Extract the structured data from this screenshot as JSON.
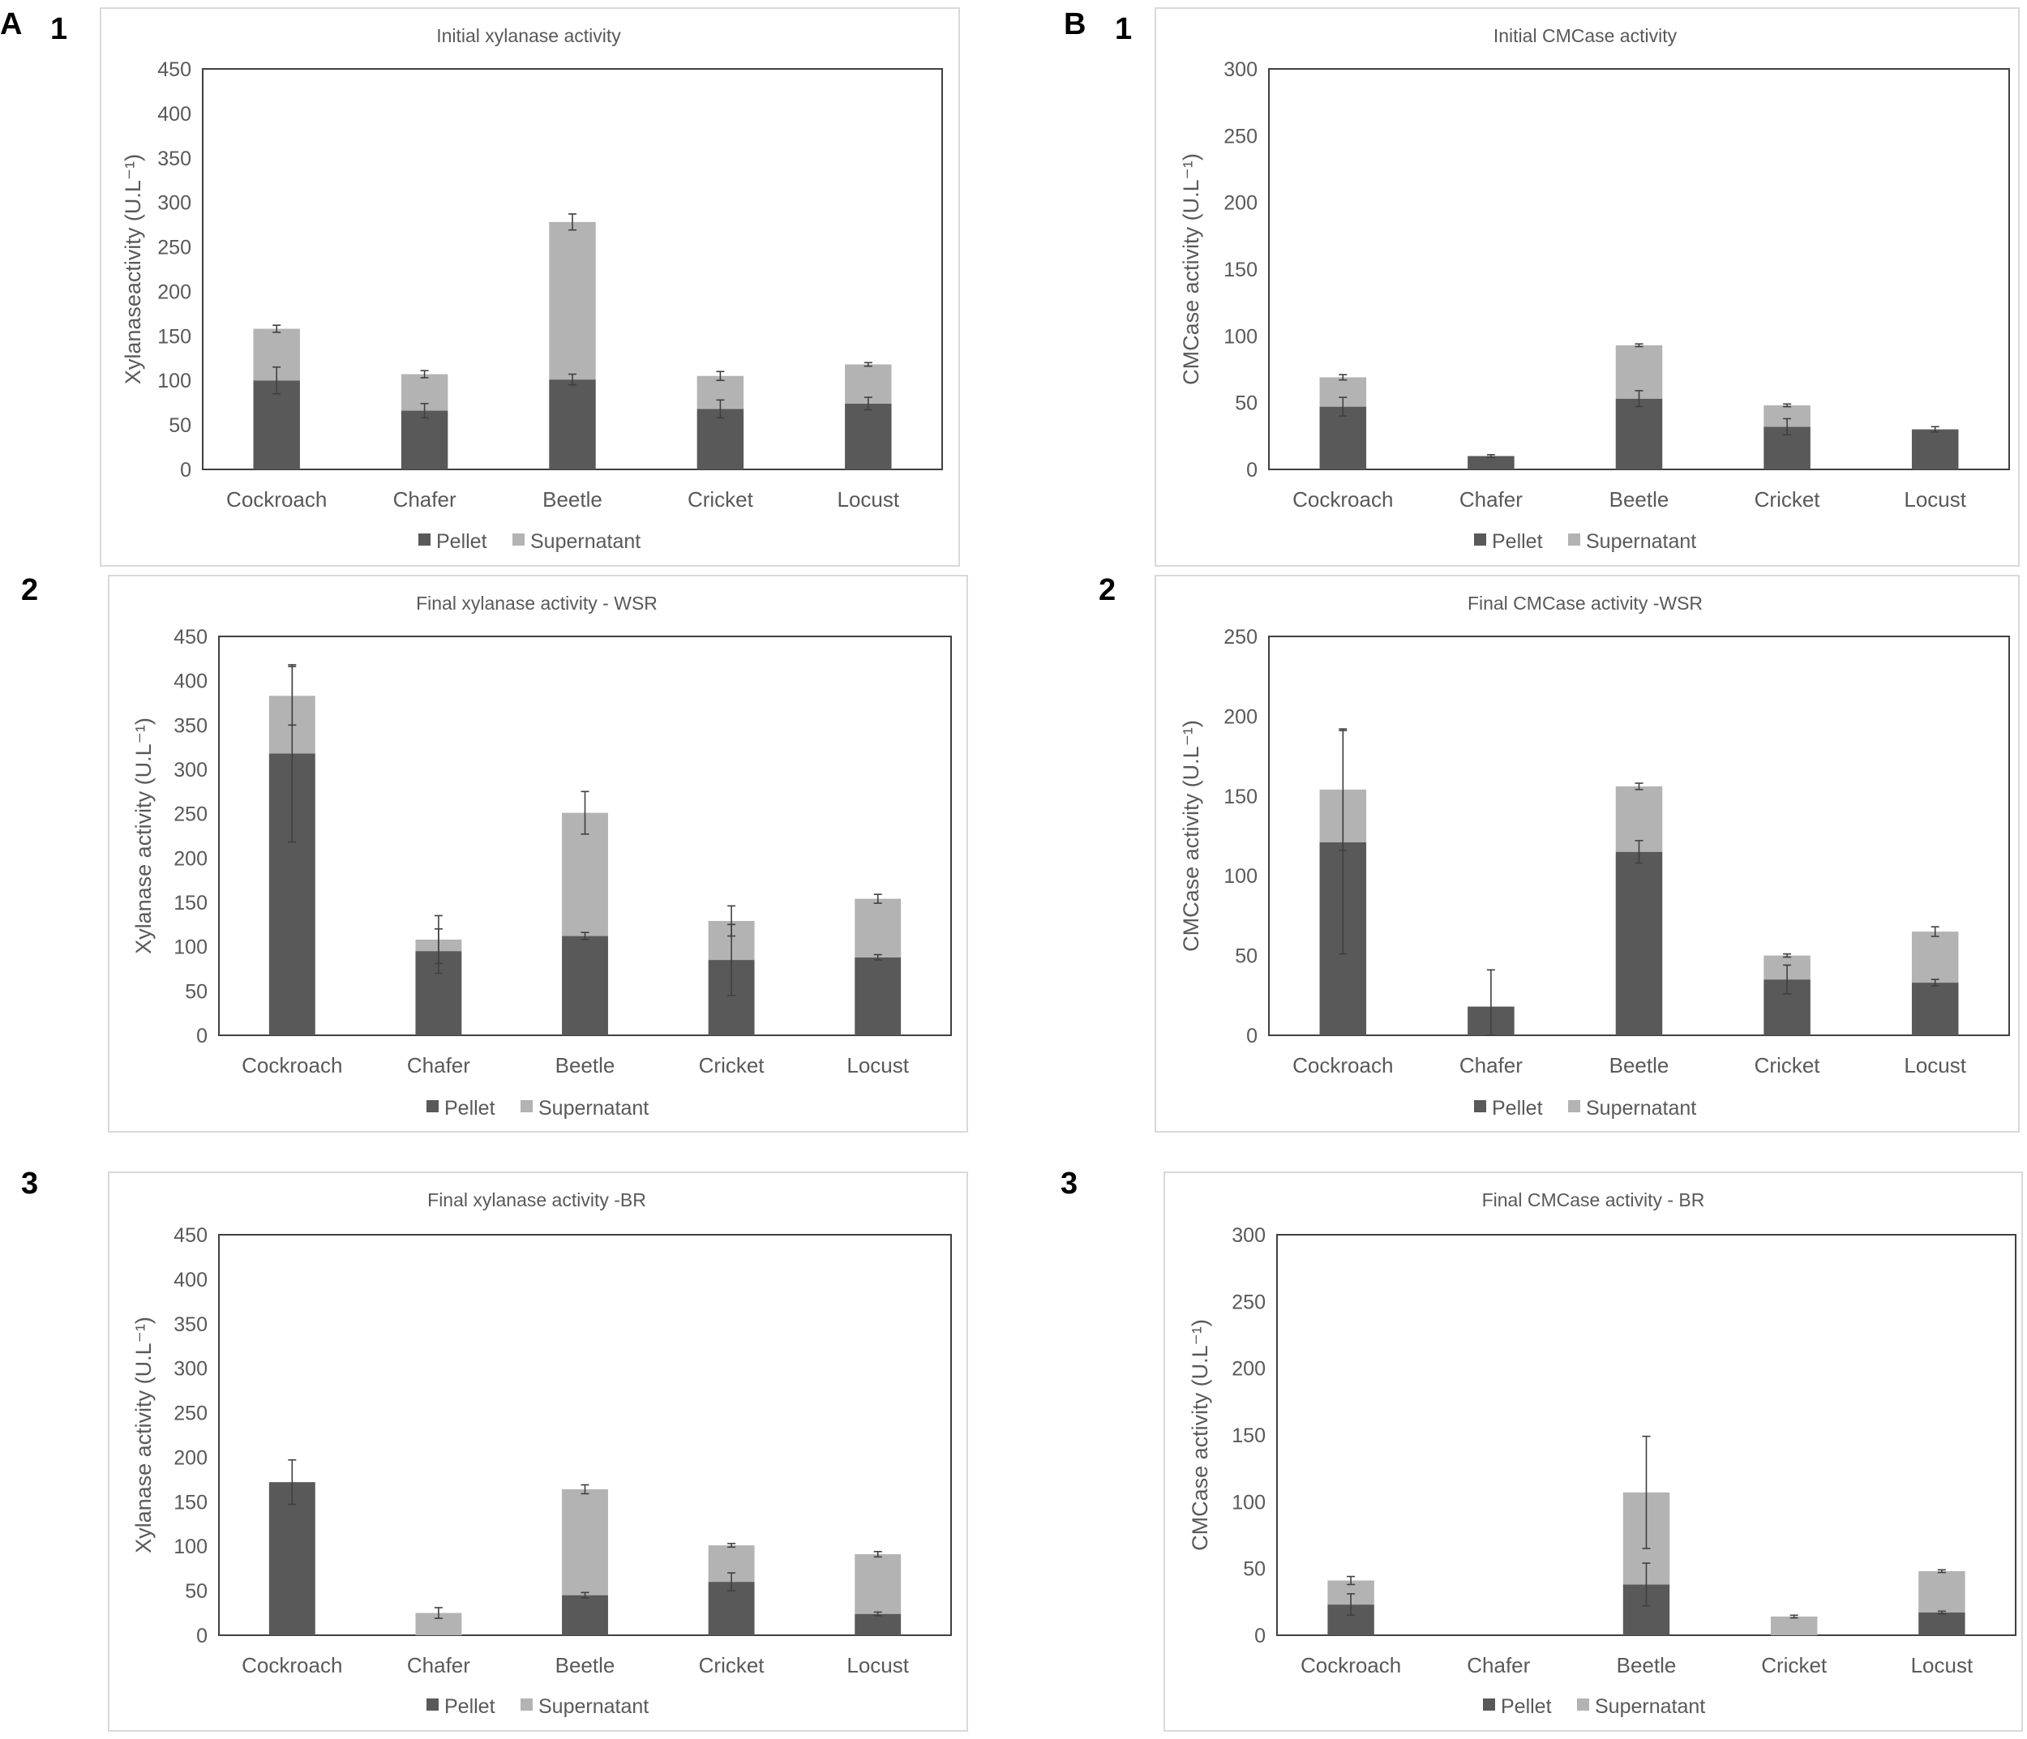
{
  "panel_labels": {
    "A": "A",
    "B": "B",
    "A1": "1",
    "A2": "2",
    "A3": "3",
    "B1": "1",
    "B2": "2",
    "B3": "3"
  },
  "colors": {
    "pellet": "#595959",
    "supernatant": "#b3b3b3",
    "axis": "#404040",
    "frame": "#d9d9d9",
    "error": "#404040"
  },
  "legend": {
    "pellet": "Pellet",
    "supernatant": "Supernatant"
  },
  "chart_data": [
    {
      "id": "A1",
      "type": "bar",
      "stacked": true,
      "title": "Initial xylanase activity",
      "ylabel": "Xylanaseactivity (U.L⁻¹)",
      "ylim": [
        0,
        450
      ],
      "yticks": [
        0,
        50,
        100,
        150,
        200,
        250,
        300,
        350,
        400,
        450
      ],
      "categories": [
        "Cockroach",
        "Chafer",
        "Beetle",
        "Cricket",
        "Locust"
      ],
      "series": [
        {
          "name": "Pellet",
          "values": [
            100,
            66,
            101,
            68,
            74
          ],
          "errors": [
            15,
            8,
            6,
            10,
            7
          ]
        },
        {
          "name": "Supernatant",
          "values": [
            58,
            41,
            177,
            37,
            44
          ],
          "errors": [
            4,
            4,
            9,
            5,
            2
          ]
        }
      ]
    },
    {
      "id": "B1",
      "type": "bar",
      "stacked": true,
      "title": "Initial CMCase activity",
      "ylabel": "CMCase activity (U.L⁻¹)",
      "ylim": [
        0,
        300
      ],
      "yticks": [
        0,
        50,
        100,
        150,
        200,
        250,
        300
      ],
      "categories": [
        "Cockroach",
        "Chafer",
        "Beetle",
        "Cricket",
        "Locust"
      ],
      "series": [
        {
          "name": "Pellet",
          "values": [
            47,
            10,
            53,
            32,
            30
          ],
          "errors": [
            7,
            1,
            6,
            6,
            2
          ]
        },
        {
          "name": "Supernatant",
          "values": [
            22,
            0,
            40,
            16,
            0
          ],
          "errors": [
            2,
            0,
            1,
            1,
            0
          ]
        }
      ]
    },
    {
      "id": "A2",
      "type": "bar",
      "stacked": true,
      "title": "Final xylanase activity - WSR",
      "ylabel": "Xylanase activity (U.L⁻¹)",
      "ylim": [
        0,
        450
      ],
      "yticks": [
        0,
        50,
        100,
        150,
        200,
        250,
        300,
        350,
        400,
        450
      ],
      "categories": [
        "Cockroach",
        "Chafer",
        "Beetle",
        "Cricket",
        "Locust"
      ],
      "series": [
        {
          "name": "Pellet",
          "values": [
            318,
            95,
            112,
            85,
            88
          ],
          "errors": [
            100,
            25,
            4,
            40,
            3
          ]
        },
        {
          "name": "Supernatant",
          "values": [
            65,
            13,
            139,
            44,
            66
          ],
          "errors": [
            33,
            27,
            24,
            17,
            5
          ]
        }
      ]
    },
    {
      "id": "B2",
      "type": "bar",
      "stacked": true,
      "title": "Final CMCase activity -WSR",
      "ylabel": "CMCase activity (U.L⁻¹)",
      "ylim": [
        0,
        250
      ],
      "yticks": [
        0,
        50,
        100,
        150,
        200,
        250
      ],
      "categories": [
        "Cockroach",
        "Chafer",
        "Beetle",
        "Cricket",
        "Locust"
      ],
      "series": [
        {
          "name": "Pellet",
          "values": [
            121,
            18,
            115,
            35,
            33
          ],
          "errors": [
            70,
            0,
            7,
            9,
            2
          ]
        },
        {
          "name": "Supernatant",
          "values": [
            33,
            0,
            41,
            15,
            32
          ],
          "errors": [
            38,
            23,
            2,
            1,
            3
          ]
        }
      ]
    },
    {
      "id": "A3",
      "type": "bar",
      "stacked": true,
      "title": "Final xylanase activity -BR",
      "ylabel": "Xylanase activity (U.L⁻¹)",
      "ylim": [
        0,
        450
      ],
      "yticks": [
        0,
        50,
        100,
        150,
        200,
        250,
        300,
        350,
        400,
        450
      ],
      "categories": [
        "Cockroach",
        "Chafer",
        "Beetle",
        "Cricket",
        "Locust"
      ],
      "series": [
        {
          "name": "Pellet",
          "values": [
            172,
            0,
            45,
            60,
            24
          ],
          "errors": [
            25,
            0,
            3,
            10,
            2
          ]
        },
        {
          "name": "Supernatant",
          "values": [
            0,
            25,
            119,
            41,
            67
          ],
          "errors": [
            0,
            6,
            5,
            2,
            3
          ]
        }
      ]
    },
    {
      "id": "B3",
      "type": "bar",
      "stacked": true,
      "title": "Final CMCase activity - BR",
      "ylabel": "CMCase activity (U.L⁻¹)",
      "ylim": [
        0,
        300
      ],
      "yticks": [
        0,
        50,
        100,
        150,
        200,
        250,
        300
      ],
      "categories": [
        "Cockroach",
        "Chafer",
        "Beetle",
        "Cricket",
        "Locust"
      ],
      "series": [
        {
          "name": "Pellet",
          "values": [
            23,
            0,
            38,
            0,
            17
          ],
          "errors": [
            8,
            0,
            16,
            0,
            1
          ]
        },
        {
          "name": "Supernatant",
          "values": [
            18,
            0,
            69,
            14,
            31
          ],
          "errors": [
            3,
            0,
            42,
            1,
            1
          ]
        }
      ]
    }
  ]
}
